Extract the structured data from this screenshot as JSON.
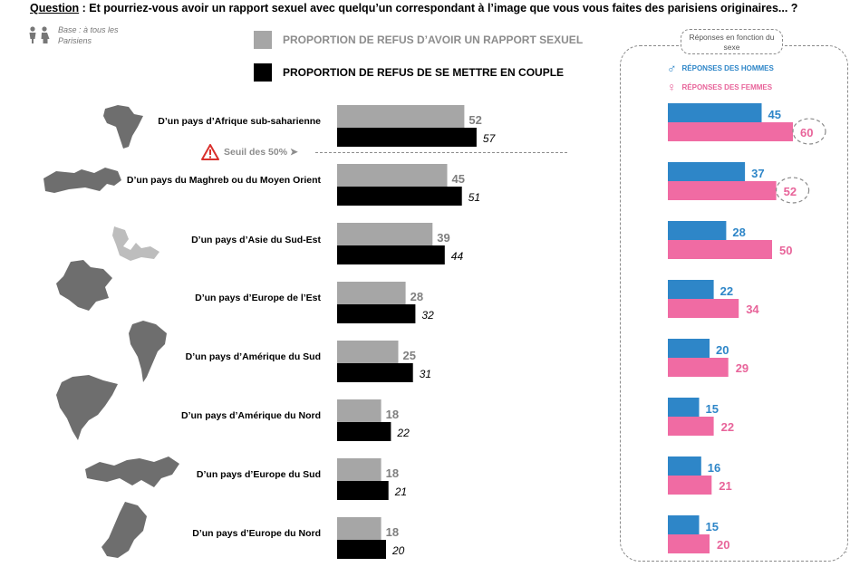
{
  "header": {
    "question_label": "Question",
    "question_text": " : Et pourriez-vous avoir un rapport sexuel avec quelqu’un correspondant à l’image que vous vous faites des parisiens originaires... ?",
    "base_text": "Base : à tous les Parisiens"
  },
  "legend": {
    "refus_sexe": "PROPORTION DE REFUS D’AVOIR UN RAPPORT SEXUEL",
    "refus_couple": "PROPORTION DE REFUS DE SE METTRE EN COUPLE"
  },
  "threshold": {
    "label": "Seuil des 50%",
    "icon": "warning-icon"
  },
  "gender_panel": {
    "title": "Réponses en fonction du sexe",
    "men_label": "RÉPONSES DES HOMMES",
    "women_label": "RÉPONSES DES FEMMES"
  },
  "colors": {
    "refus_sexe": "#a6a6a6",
    "refus_couple": "#000000",
    "men": "#2e86c8",
    "women": "#f06ba3",
    "men_text": "#2e86c8",
    "women_text": "#e8649a",
    "grey_text": "#7f7f7f"
  },
  "chart_data": [
    {
      "type": "bar",
      "orientation": "horizontal",
      "categories": [
        "D’un pays d’Afrique sub-saharienne",
        "D’un pays du Maghreb ou du Moyen Orient",
        "D’un pays d’Asie du Sud-Est",
        "D’un pays d’Europe de l’Est",
        "D’un pays d’Amérique du Sud",
        "D’un pays d’Amérique du Nord",
        "D’un pays d’Europe du Sud",
        "D’un pays d’Europe du Nord"
      ],
      "series": [
        {
          "name": "PROPORTION DE REFUS D’AVOIR UN RAPPORT SEXUEL",
          "values": [
            52,
            45,
            39,
            28,
            25,
            18,
            18,
            18
          ]
        },
        {
          "name": "PROPORTION DE REFUS DE SE METTRE EN COUPLE",
          "values": [
            57,
            51,
            44,
            32,
            31,
            22,
            21,
            20
          ]
        }
      ],
      "reference_line": {
        "value": 50,
        "label": "Seuil des 50%"
      }
    },
    {
      "type": "bar",
      "orientation": "horizontal",
      "title": "Réponses en fonction du sexe",
      "series": [
        {
          "name": "RÉPONSES DES HOMMES",
          "values": [
            45,
            37,
            28,
            22,
            20,
            15,
            16,
            15
          ]
        },
        {
          "name": "RÉPONSES DES FEMMES",
          "values": [
            60,
            52,
            50,
            34,
            29,
            22,
            21,
            20
          ]
        }
      ],
      "highlighted": [
        "women:60",
        "women:52"
      ]
    }
  ]
}
